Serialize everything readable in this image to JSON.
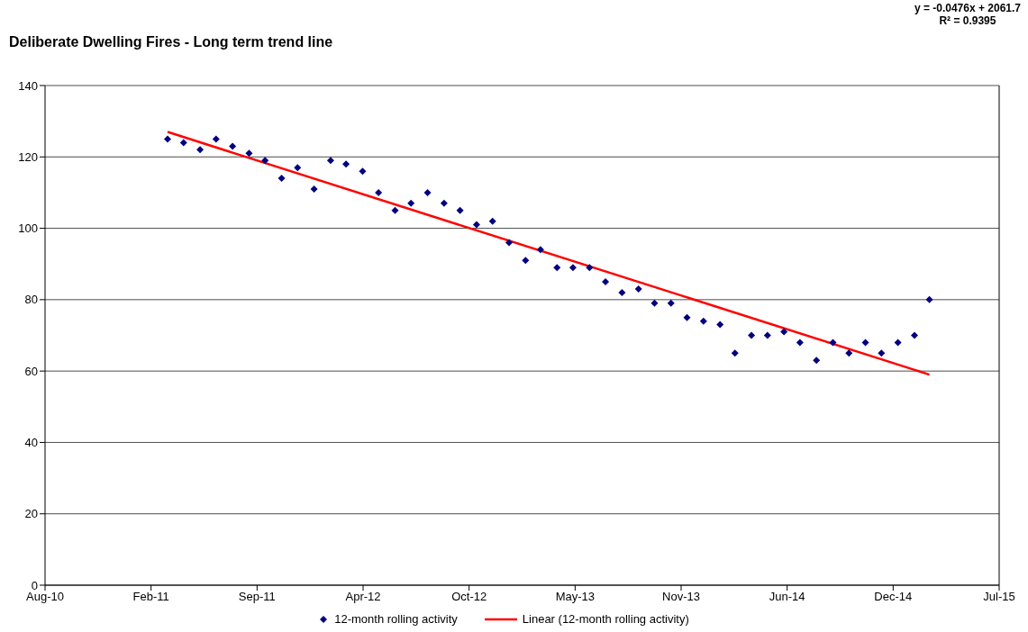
{
  "chart_data": {
    "type": "scatter",
    "title": "Deliberate Dwelling Fires - Long term trend line",
    "annotations": [
      "y = -0.0476x + 2061.7",
      "R² = 0.9395"
    ],
    "xlim": [
      "2010-08-13",
      "2015-07-09"
    ],
    "xticks": [
      {
        "value": "2010-08-13",
        "label": "Aug-10"
      },
      {
        "value": "2011-02-28",
        "label": "Feb-11"
      },
      {
        "value": "2011-09-15",
        "label": "Sep-11"
      },
      {
        "value": "2012-04-01",
        "label": "Apr-12"
      },
      {
        "value": "2012-10-17",
        "label": "Oct-12"
      },
      {
        "value": "2013-05-04",
        "label": "May-13"
      },
      {
        "value": "2013-11-19",
        "label": "Nov-13"
      },
      {
        "value": "2014-06-06",
        "label": "Jun-14"
      },
      {
        "value": "2014-12-22",
        "label": "Dec-14"
      },
      {
        "value": "2015-07-09",
        "label": "Jul-15"
      }
    ],
    "ylim": [
      0,
      140
    ],
    "yticks": [
      0,
      20,
      40,
      60,
      80,
      100,
      120,
      140
    ],
    "grid": "y",
    "legend": "bottom",
    "series": [
      {
        "name": "12-month rolling activity",
        "marker": "diamond",
        "color": "#000080",
        "x": [
          "2011-03-31",
          "2011-04-30",
          "2011-05-31",
          "2011-06-30",
          "2011-07-31",
          "2011-08-31",
          "2011-09-30",
          "2011-10-31",
          "2011-11-30",
          "2011-12-31",
          "2012-01-31",
          "2012-02-29",
          "2012-03-31",
          "2012-04-30",
          "2012-05-31",
          "2012-06-30",
          "2012-07-31",
          "2012-08-31",
          "2012-09-30",
          "2012-10-31",
          "2012-11-30",
          "2012-12-31",
          "2013-01-31",
          "2013-02-28",
          "2013-03-31",
          "2013-04-30",
          "2013-05-31",
          "2013-06-30",
          "2013-07-31",
          "2013-08-31",
          "2013-09-30",
          "2013-10-31",
          "2013-11-30",
          "2013-12-31",
          "2014-01-31",
          "2014-02-28",
          "2014-03-31",
          "2014-04-30",
          "2014-05-31",
          "2014-06-30",
          "2014-07-31",
          "2014-08-31",
          "2014-09-30",
          "2014-10-31",
          "2014-11-30",
          "2014-12-31",
          "2015-01-31",
          "2015-02-28"
        ],
        "values": [
          125,
          124,
          122,
          125,
          123,
          121,
          119,
          114,
          117,
          111,
          119,
          118,
          116,
          110,
          105,
          107,
          110,
          107,
          105,
          101,
          102,
          96,
          91,
          94,
          89,
          89,
          89,
          85,
          82,
          83,
          79,
          79,
          75,
          74,
          73,
          65,
          70,
          70,
          71,
          68,
          63,
          68,
          65,
          68,
          65,
          68,
          70,
          80
        ]
      },
      {
        "name": "Linear (12-month rolling activity)",
        "type": "line",
        "marker": "none",
        "color": "#ff0000",
        "x": [
          "2011-03-31",
          "2015-02-28"
        ],
        "values": [
          127,
          59
        ]
      }
    ]
  }
}
